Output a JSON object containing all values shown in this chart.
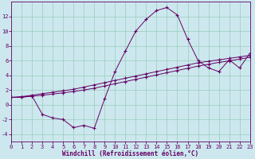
{
  "xlabel": "Windchill (Refroidissement éolien,°C)",
  "bg_color": "#cce8ee",
  "grid_color": "#99ccbb",
  "line_color": "#660066",
  "xlim": [
    0,
    23
  ],
  "ylim": [
    -5,
    14
  ],
  "xtick_vals": [
    0,
    1,
    2,
    3,
    4,
    5,
    6,
    7,
    8,
    9,
    10,
    11,
    12,
    13,
    14,
    15,
    16,
    17,
    18,
    19,
    20,
    21,
    22,
    23
  ],
  "ytick_vals": [
    -4,
    -2,
    0,
    2,
    4,
    6,
    8,
    10,
    12
  ],
  "series1_x": [
    0,
    1,
    2,
    3,
    4,
    5,
    6,
    7,
    8,
    9,
    10,
    11,
    12,
    13,
    14,
    15,
    16,
    17,
    18,
    19,
    20,
    21,
    22,
    23
  ],
  "series1_y": [
    1.0,
    1.0,
    1.2,
    -1.3,
    -1.8,
    -2.0,
    -3.1,
    -2.8,
    -3.2,
    0.8,
    4.5,
    7.3,
    10.0,
    11.6,
    12.8,
    13.2,
    12.2,
    8.9,
    6.0,
    5.0,
    4.5,
    6.1,
    5.0,
    7.0
  ],
  "series2_x": [
    0,
    1,
    2,
    3,
    4,
    5,
    6,
    7,
    8,
    9,
    10,
    11,
    12,
    13,
    14,
    15,
    16,
    17,
    18,
    19,
    20,
    21,
    22,
    23
  ],
  "series2_y": [
    1.0,
    1.1,
    1.3,
    1.5,
    1.7,
    1.9,
    2.1,
    2.4,
    2.7,
    3.0,
    3.3,
    3.6,
    3.9,
    4.2,
    4.5,
    4.8,
    5.1,
    5.4,
    5.7,
    5.9,
    6.1,
    6.3,
    6.5,
    6.7
  ],
  "series3_x": [
    0,
    1,
    2,
    3,
    4,
    5,
    6,
    7,
    8,
    9,
    10,
    11,
    12,
    13,
    14,
    15,
    16,
    17,
    18,
    19,
    20,
    21,
    22,
    23
  ],
  "series3_y": [
    1.0,
    1.05,
    1.15,
    1.3,
    1.45,
    1.62,
    1.8,
    2.0,
    2.25,
    2.55,
    2.85,
    3.15,
    3.45,
    3.75,
    4.05,
    4.35,
    4.65,
    4.95,
    5.25,
    5.5,
    5.75,
    5.95,
    6.2,
    6.45
  ],
  "marker_size": 2.5,
  "linewidth": 0.7,
  "xlabel_fontsize": 5.5,
  "tick_fontsize": 5.0
}
